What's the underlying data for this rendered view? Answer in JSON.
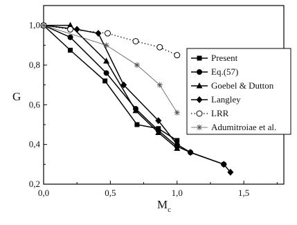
{
  "chart_data": {
    "type": "line",
    "xlabel": "M",
    "xlabel_sub": "c",
    "ylabel": "G",
    "xlim": [
      0.0,
      1.8
    ],
    "ylim": [
      0.2,
      1.1
    ],
    "xticks": [
      0.0,
      0.5,
      1.0,
      1.5
    ],
    "xtick_labels": [
      "0,0",
      "0,5",
      "1,0",
      "1,5"
    ],
    "yticks": [
      0.2,
      0.4,
      0.6,
      0.8,
      1.0
    ],
    "ytick_labels": [
      "0,2",
      "0,4",
      "0,6",
      "0,8",
      "1,0"
    ],
    "legend_position": "right",
    "series": [
      {
        "name": "Present",
        "marker": "square",
        "line": "solid",
        "color": "#000000",
        "x": [
          0.0,
          0.2,
          0.46,
          0.7,
          0.86,
          1.0
        ],
        "y": [
          1.0,
          0.875,
          0.72,
          0.5,
          0.48,
          0.42
        ]
      },
      {
        "name": "Eq.(57)",
        "marker": "circle",
        "line": "solid",
        "color": "#000000",
        "x": [
          0.0,
          0.2,
          0.47,
          0.69,
          0.86,
          1.0,
          1.1,
          1.35
        ],
        "y": [
          1.0,
          0.94,
          0.76,
          0.58,
          0.47,
          0.39,
          0.36,
          0.3
        ]
      },
      {
        "name": "Goebel & Dutton",
        "marker": "triangle",
        "line": "solid",
        "color": "#000000",
        "x": [
          0.0,
          0.2,
          0.47,
          0.69,
          0.86,
          1.0
        ],
        "y": [
          1.0,
          1.0,
          0.82,
          0.57,
          0.46,
          0.38
        ]
      },
      {
        "name": "Langley",
        "marker": "diamond",
        "line": "solid",
        "color": "#000000",
        "x": [
          0.0,
          0.25,
          0.41,
          0.6,
          0.86,
          1.0,
          1.1,
          1.35,
          1.4
        ],
        "y": [
          1.0,
          0.98,
          0.96,
          0.7,
          0.52,
          0.4,
          0.36,
          0.3,
          0.26
        ]
      },
      {
        "name": "LRR",
        "marker": "open-circle",
        "line": "dotted",
        "color": "#000000",
        "x": [
          0.0,
          0.2,
          0.48,
          0.69,
          0.87,
          1.0
        ],
        "y": [
          1.0,
          0.98,
          0.96,
          0.92,
          0.89,
          0.85
        ]
      },
      {
        "name": "Adumitroiae et al.",
        "marker": "asterisk",
        "line": "solid-thin",
        "color": "#555555",
        "x": [
          0.0,
          0.47,
          0.7,
          0.87,
          1.0
        ],
        "y": [
          1.0,
          0.9,
          0.8,
          0.7,
          0.56
        ]
      }
    ]
  }
}
